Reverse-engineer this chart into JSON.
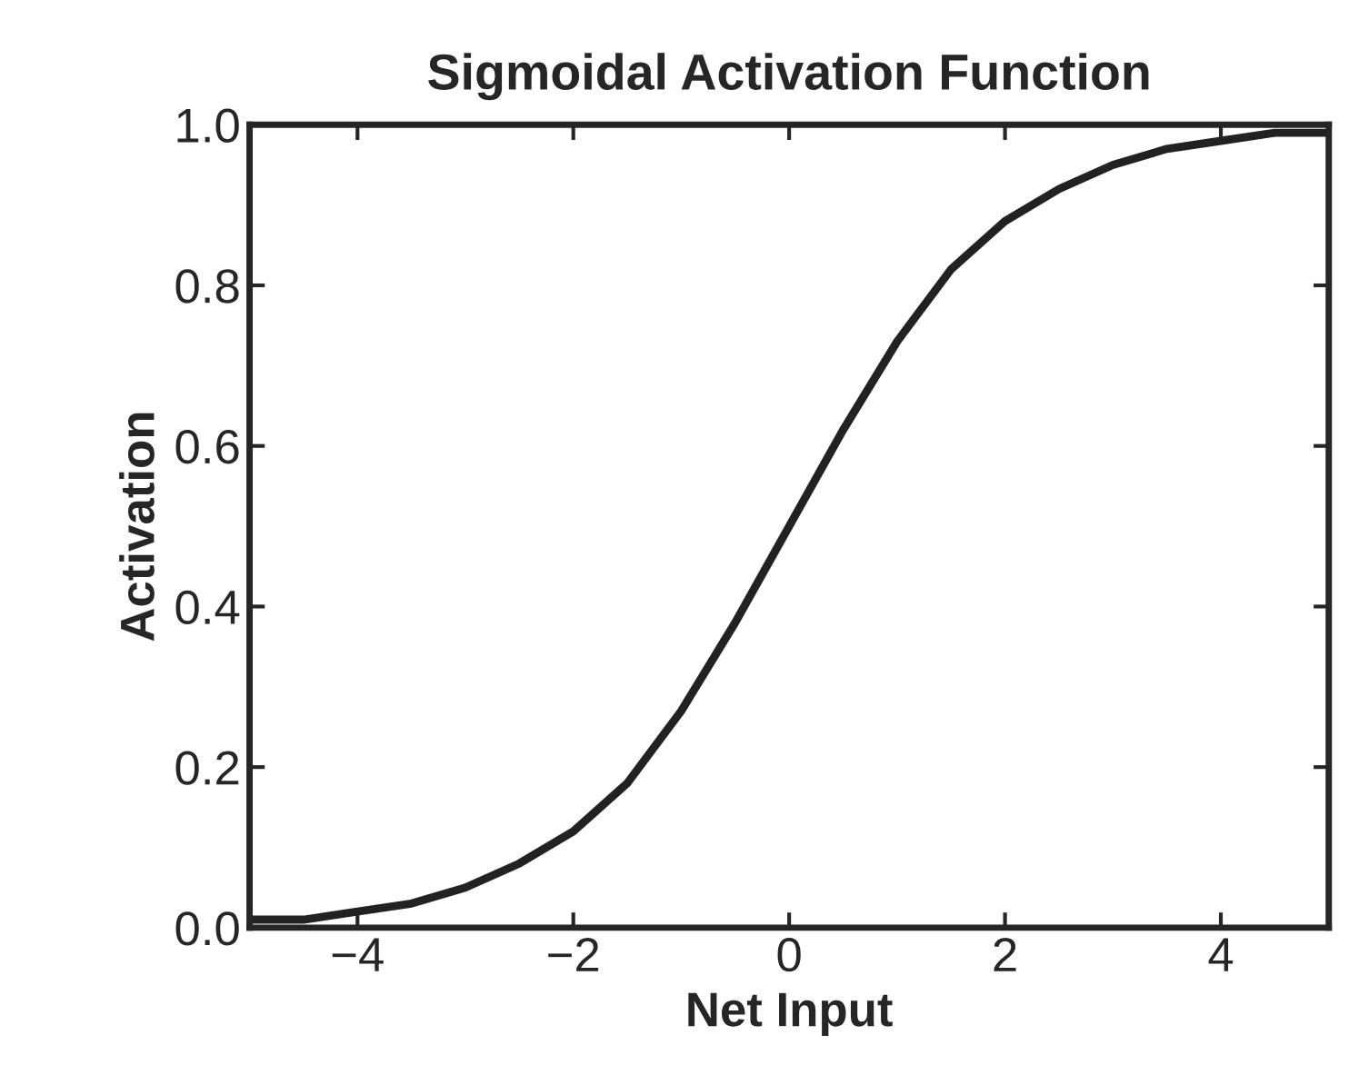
{
  "chart_data": {
    "type": "line",
    "title": "Sigmoidal Activation Function",
    "xlabel": "Net Input",
    "ylabel": "Activation",
    "x": [
      -5,
      -4.5,
      -4,
      -3.5,
      -3,
      -2.5,
      -2,
      -1.5,
      -1,
      -0.5,
      0,
      0.5,
      1,
      1.5,
      2,
      2.5,
      3,
      3.5,
      4,
      4.5,
      5
    ],
    "series": [
      {
        "color": "#222222",
        "values": [
          0.01,
          0.01,
          0.02,
          0.03,
          0.05,
          0.08,
          0.12,
          0.18,
          0.27,
          0.38,
          0.5,
          0.62,
          0.73,
          0.82,
          0.88,
          0.92,
          0.95,
          0.97,
          0.98,
          0.99,
          0.99
        ]
      }
    ],
    "xlim": [
      -5,
      5
    ],
    "ylim": [
      0,
      1
    ],
    "xticks": [
      {
        "value": -4,
        "label": "−4"
      },
      {
        "value": -2,
        "label": "−2"
      },
      0,
      2,
      4
    ],
    "yticks": [
      {
        "value": 0,
        "label": "0.0"
      },
      {
        "value": 0.2,
        "label": "0.2"
      },
      {
        "value": 0.4,
        "label": "0.4"
      },
      {
        "value": 0.6,
        "label": "0.6"
      },
      {
        "value": 0.8,
        "label": "0.8"
      },
      {
        "value": 1,
        "label": "1.0"
      }
    ],
    "grid": false,
    "line_style": "solid"
  }
}
